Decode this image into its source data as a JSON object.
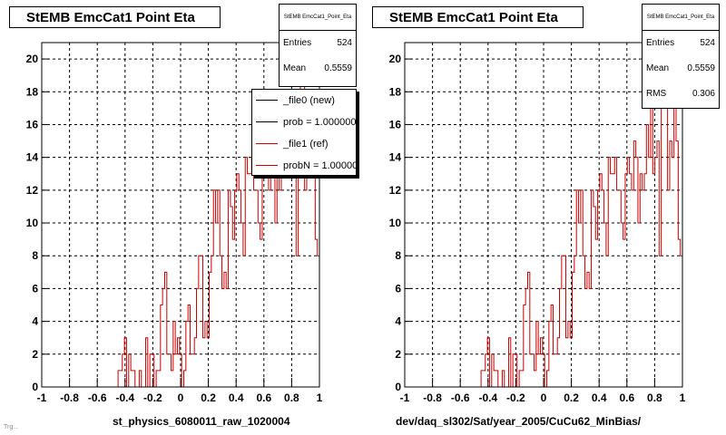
{
  "chart_data": [
    {
      "type": "histogram",
      "title": "StEMB EmcCat1 Point Eta",
      "xlabel": "st_physics_6080011_raw_1020004",
      "xlim": [
        -1,
        1
      ],
      "ylim": [
        0,
        21
      ],
      "xticks": [
        -1,
        -0.8,
        -0.6,
        -0.4,
        -0.2,
        0,
        0.2,
        0.4,
        0.6,
        0.8,
        1
      ],
      "yticks": [
        0,
        2,
        4,
        6,
        8,
        10,
        12,
        14,
        16,
        18,
        20
      ],
      "grid": true,
      "stats": {
        "header": "StEMB EmcCat1_Point_Eta",
        "rows": [
          {
            "label": "Entries",
            "value": "524"
          },
          {
            "label": "Mean",
            "value": "0.5559"
          }
        ]
      },
      "legend": {
        "placement": "top-right",
        "entries": [
          {
            "label": "_file0 (new)",
            "color": "#000000"
          },
          {
            "label": "prob = 1.000000",
            "color": "#000000"
          },
          {
            "label": "_file1 (ref)",
            "color": "#cc0000"
          },
          {
            "label": "probN = 1.000000",
            "color": "#cc0000"
          }
        ]
      },
      "series": [
        {
          "color": "#cc0000",
          "bin_edges": [
            -1,
            1
          ],
          "values": [
            0,
            0,
            0,
            0,
            0,
            0,
            0,
            0,
            0,
            0,
            0,
            0,
            0,
            0,
            0,
            0,
            0,
            0,
            0,
            0,
            0,
            0,
            0,
            0,
            0,
            0,
            0,
            0,
            0,
            0,
            0,
            0,
            0,
            0,
            0,
            0,
            1,
            1,
            2,
            3,
            0,
            2,
            1,
            1,
            0,
            0,
            1,
            0,
            0,
            3,
            0,
            2,
            2,
            0,
            1,
            1,
            5,
            6,
            7,
            2,
            2,
            1,
            4,
            2,
            3,
            2,
            0,
            1,
            4,
            5,
            2,
            2,
            3,
            6,
            8,
            8,
            3,
            4,
            3,
            7,
            8,
            12,
            10,
            12,
            8,
            6,
            7,
            6,
            12,
            11,
            9,
            12,
            13,
            12,
            10,
            8,
            14,
            13,
            13,
            14,
            12,
            12,
            10,
            9,
            13,
            14,
            13,
            12,
            15,
            14,
            10,
            13,
            12,
            13,
            16,
            14,
            17,
            13,
            14,
            15,
            8,
            17,
            20,
            19,
            12,
            15,
            14,
            18,
            15,
            9,
            8
          ]
        }
      ]
    },
    {
      "type": "histogram",
      "title": "StEMB EmcCat1 Point Eta",
      "xlabel": "dev/daq_sl302/Sat/year_2005/CuCu62_MinBias/",
      "xlim": [
        -1,
        1
      ],
      "ylim": [
        0,
        21
      ],
      "xticks": [
        -1,
        -0.8,
        -0.6,
        -0.4,
        -0.2,
        0,
        0.2,
        0.4,
        0.6,
        0.8,
        1
      ],
      "yticks": [
        0,
        2,
        4,
        6,
        8,
        10,
        12,
        14,
        16,
        18,
        20
      ],
      "grid": true,
      "stats": {
        "header": "StEMB EmcCat1_Point_Eta",
        "rows": [
          {
            "label": "Entries",
            "value": "524"
          },
          {
            "label": "Mean",
            "value": "0.5559"
          },
          {
            "label": "RMS",
            "value": "0.306"
          }
        ]
      },
      "series": [
        {
          "color": "#cc0000",
          "bin_edges": [
            -1,
            1
          ],
          "values": [
            0,
            0,
            0,
            0,
            0,
            0,
            0,
            0,
            0,
            0,
            0,
            0,
            0,
            0,
            0,
            0,
            0,
            0,
            0,
            0,
            0,
            0,
            0,
            0,
            0,
            0,
            0,
            0,
            0,
            0,
            0,
            0,
            0,
            0,
            0,
            0,
            1,
            1,
            2,
            3,
            0,
            2,
            1,
            1,
            0,
            0,
            1,
            0,
            0,
            3,
            0,
            2,
            2,
            0,
            1,
            1,
            5,
            6,
            7,
            2,
            2,
            1,
            4,
            2,
            3,
            2,
            0,
            1,
            4,
            5,
            2,
            2,
            3,
            6,
            8,
            8,
            3,
            4,
            3,
            7,
            8,
            12,
            10,
            12,
            8,
            6,
            7,
            6,
            12,
            11,
            9,
            12,
            13,
            12,
            10,
            8,
            14,
            13,
            13,
            14,
            12,
            12,
            10,
            9,
            13,
            14,
            13,
            12,
            15,
            14,
            10,
            13,
            12,
            13,
            16,
            14,
            17,
            13,
            14,
            15,
            8,
            17,
            20,
            19,
            12,
            15,
            14,
            18,
            15,
            9,
            8
          ]
        }
      ]
    }
  ],
  "footer": "Trg..."
}
